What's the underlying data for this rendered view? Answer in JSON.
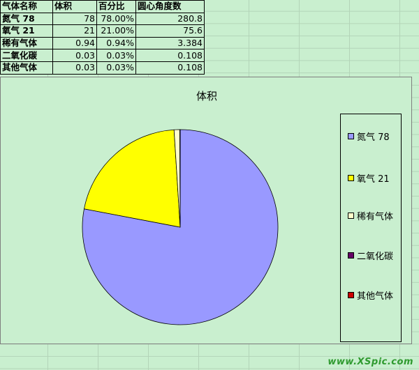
{
  "table": {
    "headers": [
      "气体名称",
      "体积",
      "百分比",
      "圆心角度数"
    ],
    "rows": [
      [
        "氮气 78",
        "78",
        "78.00%",
        "280.8"
      ],
      [
        "氧气 21",
        "21",
        "21.00%",
        "75.6"
      ],
      [
        "稀有气体",
        "0.94",
        "0.94%",
        "3.384"
      ],
      [
        "二氧化碳",
        "0.03",
        "0.03%",
        "0.108"
      ],
      [
        "其他气体",
        "0.03",
        "0.03%",
        "0.108"
      ]
    ]
  },
  "chart_data": {
    "type": "pie",
    "title": "体积",
    "categories": [
      "氮气 78",
      "氧气 21",
      "稀有气体",
      "二氧化碳",
      "其他气体"
    ],
    "values": [
      78,
      21,
      0.94,
      0.03,
      0.03
    ],
    "colors": [
      "#9999ff",
      "#ffff00",
      "#ffffcc",
      "#660066",
      "#cc0000"
    ],
    "legend_position": "right"
  },
  "watermark": "www.XSpic.com"
}
